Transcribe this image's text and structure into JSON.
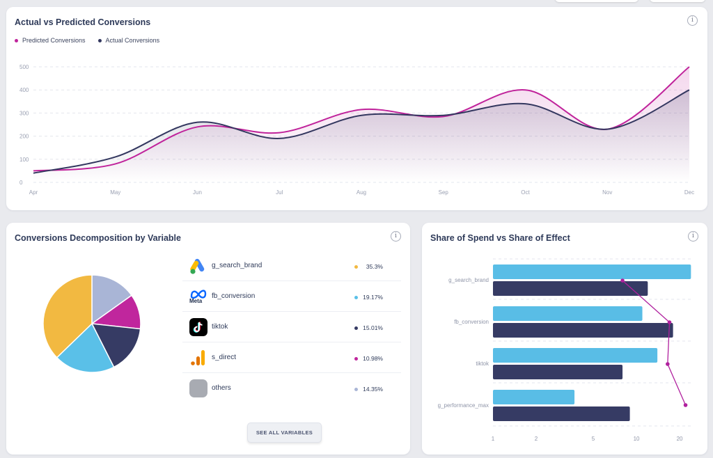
{
  "colors": {
    "predicted": "#c0239b",
    "actual": "#33375f",
    "spend": "#59bde6",
    "effect_line": "#b0209e",
    "yellow": "#f2b941",
    "cyan": "#5ac0e8",
    "navy": "#363b64",
    "magenta": "#c0269d",
    "lavender": "#a9b5d6"
  },
  "cards": {
    "conversions": {
      "title": "Actual vs Predicted Conversions",
      "info": "i"
    },
    "decomposition": {
      "title": "Conversions Decomposition by Variable",
      "info": "i"
    },
    "share": {
      "title": "Share of Spend vs Share of Effect",
      "info": "i"
    }
  },
  "decomposition": {
    "variables": [
      {
        "label": "g_search_brand",
        "pct": "35.3%",
        "icon": "google-ads-icon"
      },
      {
        "label": "fb_conversion",
        "pct": "19.17%",
        "icon": "meta-icon"
      },
      {
        "label": "tiktok",
        "pct": "15.01%",
        "icon": "tiktok-icon"
      },
      {
        "label": "s_direct",
        "pct": "10.98%",
        "icon": "analytics-icon"
      },
      {
        "label": "others",
        "pct": "14.35%",
        "icon": "others-icon"
      }
    ],
    "see_all_label": "SEE ALL VARIABLES",
    "meta_icon_text": "Meta"
  },
  "chart_data": [
    {
      "type": "area",
      "title": "Actual vs Predicted Conversions",
      "x": [
        "Apr",
        "May",
        "Jun",
        "Jul",
        "Aug",
        "Sep",
        "Oct",
        "Nov",
        "Dec"
      ],
      "yticks": [
        0,
        100,
        200,
        300,
        400,
        500
      ],
      "ylim": [
        0,
        500
      ],
      "grid": true,
      "legend_position": "top-left",
      "series": [
        {
          "name": "Predicted Conversions",
          "values": [
            50,
            80,
            240,
            215,
            315,
            285,
            400,
            230,
            500
          ]
        },
        {
          "name": "Actual Conversions",
          "values": [
            40,
            110,
            260,
            190,
            290,
            290,
            340,
            230,
            400
          ]
        }
      ]
    },
    {
      "type": "pie",
      "title": "Conversions Decomposition by Variable",
      "categories": [
        "g_search_brand",
        "fb_conversion",
        "tiktok",
        "s_direct",
        "others"
      ],
      "values": [
        35.3,
        19.17,
        15.01,
        10.98,
        14.35
      ]
    },
    {
      "type": "bar",
      "title": "Share of Spend vs Share of Effect",
      "orientation": "horizontal",
      "x_scale": "log",
      "xticks": [
        1,
        2,
        5,
        10,
        20
      ],
      "xlim": [
        1,
        25
      ],
      "categories": [
        "g_search_brand",
        "fb_conversion",
        "tiktok",
        "g_performance_max"
      ],
      "series": [
        {
          "values": [
            24,
            11,
            14,
            3.7
          ]
        },
        {
          "values": [
            12,
            18,
            8,
            9
          ]
        },
        {
          "type": "line",
          "values": [
            8,
            17,
            16.5,
            22
          ]
        }
      ]
    }
  ]
}
